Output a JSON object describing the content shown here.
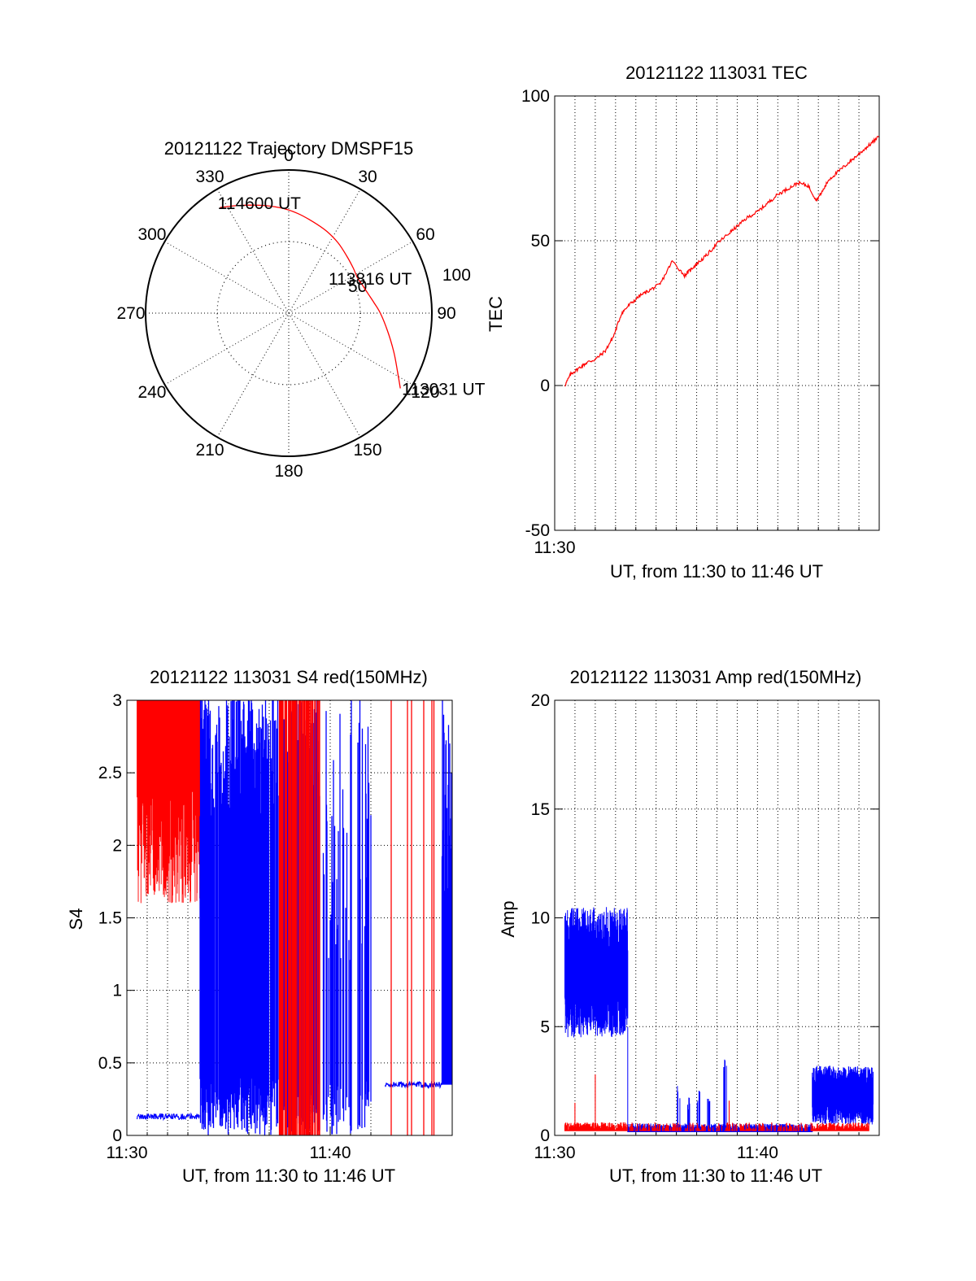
{
  "chart_data": [
    {
      "id": "trajectory",
      "type": "scatter",
      "subtype": "polar",
      "title": "20121122 Trajectory DMSPF15",
      "angle_ticks": [
        "0",
        "30",
        "60",
        "90",
        "120",
        "150",
        "180",
        "210",
        "240",
        "270",
        "300",
        "330"
      ],
      "radius_ticks": [
        "50",
        "100"
      ],
      "rlim": [
        0,
        100
      ],
      "annotations": [
        "114600 UT",
        "113816 UT",
        "113031 UT"
      ],
      "track_color": "#ff0000",
      "track": {
        "azimuth_deg": [
          327,
          335,
          345,
          355,
          5,
          15,
          25,
          35,
          45,
          55,
          62,
          69,
          76,
          83,
          90,
          100,
          110,
          118,
          124
        ],
        "radius": [
          88,
          83,
          78,
          74,
          70,
          66,
          63,
          60,
          57,
          55,
          54,
          55,
          57,
          60,
          64,
          70,
          78,
          86,
          94
        ]
      }
    },
    {
      "id": "tec",
      "type": "line",
      "title": "20121122 113031 TEC",
      "xlabel": "UT, from 11:30 to 11:46 UT",
      "ylabel": "TEC",
      "x_tick_labels": [
        "11:30"
      ],
      "ytick_labels": [
        "-50",
        "0",
        "50",
        "100"
      ],
      "xlim": [
        0,
        16
      ],
      "ylim": [
        -50,
        100
      ],
      "grid": true,
      "series_color": "#ff0000",
      "x": [
        0.5,
        0.8,
        1.2,
        1.6,
        2.0,
        2.5,
        2.9,
        3.3,
        3.7,
        4.2,
        4.7,
        5.2,
        5.8,
        6.4,
        6.7,
        7.0,
        7.5,
        8.0,
        8.5,
        9.0,
        9.5,
        10.0,
        10.5,
        11.0,
        11.5,
        12.0,
        12.5,
        12.9,
        13.2,
        13.5,
        14.0,
        14.5,
        15.0,
        15.5,
        16.0
      ],
      "y": [
        0,
        4,
        6,
        8,
        9,
        12,
        17,
        25,
        28,
        31,
        33,
        35,
        43,
        38,
        40,
        42,
        45,
        49,
        52,
        55,
        58,
        60,
        63,
        66,
        68,
        70,
        69,
        64,
        67,
        71,
        74,
        77,
        80,
        83,
        86
      ]
    },
    {
      "id": "s4",
      "type": "line",
      "title": "20121122 113031 S4 red(150MHz)",
      "xlabel": "UT, from 11:30 to 11:46 UT",
      "ylabel": "S4",
      "x_tick_labels": [
        "11:30",
        "11:40"
      ],
      "ytick_labels": [
        "0",
        "0.5",
        "1",
        "1.5",
        "2",
        "2.5",
        "3"
      ],
      "xlim": [
        0,
        16
      ],
      "ylim": [
        0,
        3
      ],
      "grid": true,
      "series": [
        {
          "color": "#ff0000",
          "values_summary": "red S4 saturated 2.0–3.0 from 11:30 to 11:33.5, dense spikes 11:37–11:39, isolated spikes near 11:43–11:45"
        },
        {
          "color": "#0000ff",
          "values_summary": "blue S4 ~0.13 from 11:30.5 to 11:33.5, spikes 0–3 from 11:33.5 to 11:41.5, ~0.35 from 11:42 to 11:45.5"
        }
      ],
      "red_segments": [
        [
          0.5,
          3.6,
          1.6,
          3.0
        ]
      ],
      "blue_base": [
        [
          0.5,
          3.6,
          0.13
        ],
        [
          12.7,
          15.5,
          0.35
        ]
      ],
      "blue_spike_range": [
        3.6,
        12.0
      ],
      "red_spike_range": [
        7.5,
        9.5
      ],
      "red_isolated_spikes": [
        13.0,
        13.8,
        14.0,
        14.6,
        15.0,
        15.1
      ]
    },
    {
      "id": "amp",
      "type": "line",
      "title": "20121122 113031 Amp red(150MHz)",
      "xlabel": "UT, from 11:30 to 11:46 UT",
      "ylabel": "Amp",
      "x_tick_labels": [
        "11:30",
        "11:40"
      ],
      "ytick_labels": [
        "0",
        "5",
        "10",
        "15",
        "20"
      ],
      "xlim": [
        0,
        16
      ],
      "ylim": [
        0,
        20
      ],
      "grid": true,
      "series": [
        {
          "color": "#0000ff",
          "values_summary": "blue amplitude ~5–10 from 11:30.5 to 11:33.5, ~0.3 with bursts to ~4 at 11:36–11:38, ~1–3 from 11:42.5 to 11:46"
        },
        {
          "color": "#ff0000",
          "values_summary": "red amplitude ~0.3–0.6 throughout, spike ~2.8 near 11:32"
        }
      ],
      "blue_bands": [
        [
          0.5,
          3.6,
          4.5,
          10.5
        ],
        [
          12.7,
          15.7,
          0.5,
          3.2
        ]
      ],
      "blue_bursts": [
        [
          6.1,
          2.5
        ],
        [
          6.6,
          1.9
        ],
        [
          7.1,
          2.1
        ],
        [
          7.6,
          1.7
        ],
        [
          8.4,
          3.8
        ]
      ],
      "red_level": [
        0.2,
        0.6
      ],
      "red_spikes": [
        [
          2.0,
          2.8
        ],
        [
          8.6,
          1.6
        ],
        [
          1.0,
          1.5
        ]
      ]
    }
  ]
}
